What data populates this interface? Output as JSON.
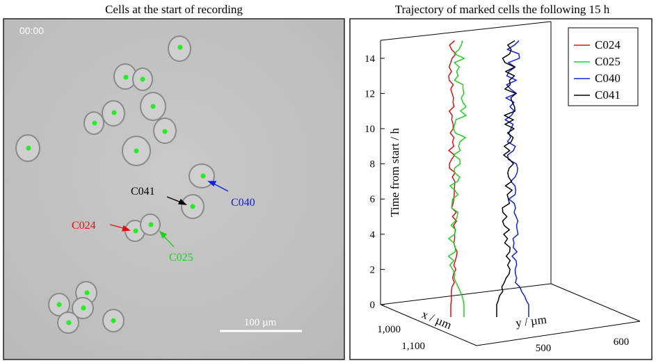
{
  "left_panel": {
    "title": "Cells at the start of recording",
    "timestamp": "00:00",
    "scale_bar_label": "100 µm",
    "cell_labels": [
      {
        "id": "C024",
        "color": "#e01010"
      },
      {
        "id": "C025",
        "color": "#20d020"
      },
      {
        "id": "C040",
        "color": "#1020e0"
      },
      {
        "id": "C041",
        "color": "#000000"
      }
    ]
  },
  "chart_data": {
    "type": "line",
    "title": "Trajectory of marked cells the following 15 h",
    "zlabel": "Time from start / h",
    "xlabel": "x / µm",
    "ylabel": "y / µm",
    "zlim": [
      0,
      15
    ],
    "z_ticks": [
      "0",
      "2",
      "4",
      "6",
      "8",
      "10",
      "12",
      "14"
    ],
    "x_ticks": [
      "1,000",
      "1,100"
    ],
    "y_ticks": [
      "500",
      "600"
    ],
    "legend_position": "top-right",
    "series": [
      {
        "name": "C024",
        "color": "#e01010"
      },
      {
        "name": "C025",
        "color": "#20d020"
      },
      {
        "name": "C040",
        "color": "#1020e0"
      },
      {
        "name": "C041",
        "color": "#000000"
      }
    ]
  }
}
